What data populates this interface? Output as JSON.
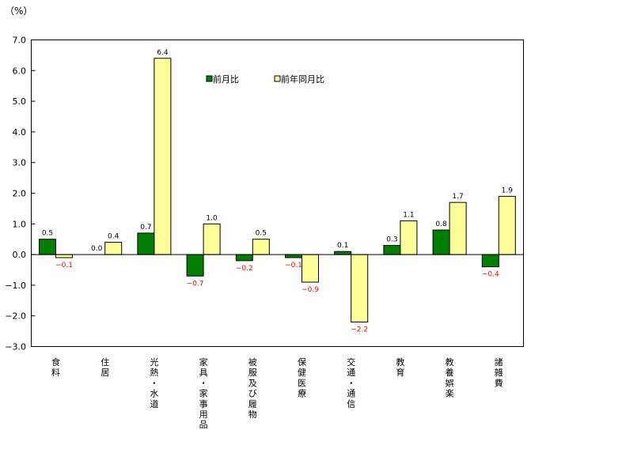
{
  "chart_data": {
    "type": "bar",
    "title": "",
    "unit_label": "（%）",
    "xlabel": "",
    "ylabel": "（%）",
    "ylim": [
      -3.0,
      7.0
    ],
    "yticks": [
      "7.0",
      "6.0",
      "5.0",
      "4.0",
      "3.0",
      "2.0",
      "1.0",
      "0.0",
      "−1.0",
      "−2.0",
      "−3.0"
    ],
    "grid": false,
    "legend_position": "top-center inside plot",
    "categories": [
      "食料",
      "住居",
      "光熱・水道",
      "家具・家事用品",
      "被服及び履物",
      "保健医療",
      "交通・通信",
      "教育",
      "教養娯楽",
      "諸雑費"
    ],
    "series": [
      {
        "name": "前月比",
        "color": "#008000",
        "values": [
          0.5,
          0.0,
          0.7,
          -0.7,
          -0.2,
          -0.1,
          0.1,
          0.3,
          0.8,
          -0.4
        ],
        "labels": [
          "0.5",
          "0.0",
          "0.7",
          "−0.7",
          "−0.2",
          "−0.1",
          "0.1",
          "0.3",
          "0.8",
          "−0.4"
        ]
      },
      {
        "name": "前年同月比",
        "color": "#FFFF99",
        "values": [
          -0.1,
          0.4,
          6.4,
          1.0,
          0.5,
          -0.9,
          -2.2,
          1.1,
          1.7,
          1.9
        ],
        "labels": [
          "−0.1",
          "0.4",
          "6.4",
          "1.0",
          "0.5",
          "−0.9",
          "−2.2",
          "1.1",
          "1.7",
          "1.9"
        ]
      }
    ],
    "negative_label_color": "#FF0000",
    "positive_label_color": "#000000"
  }
}
